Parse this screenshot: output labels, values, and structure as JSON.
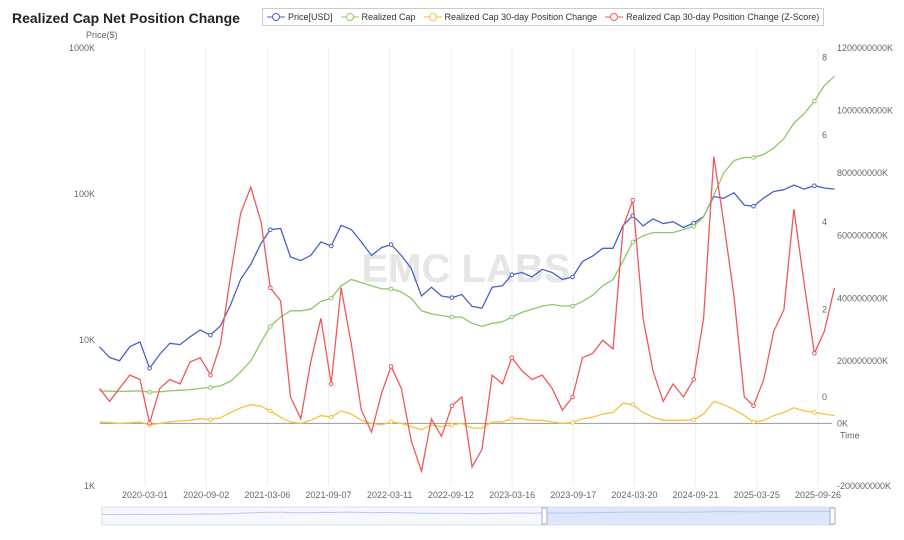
{
  "chart_data": {
    "type": "line",
    "title": "Realized Cap Net Position Change",
    "ylabel_left": "Price($)",
    "xlabel": "Time",
    "left_axis": {
      "scale": "log",
      "ticks": [
        "1K",
        "10K",
        "100K",
        "1000K"
      ],
      "range": [
        1000,
        1000000
      ]
    },
    "right_axis": {
      "ticks": [
        "-200000000K",
        "0K",
        "200000000K",
        "400000000K",
        "600000000K",
        "800000000K",
        "1000000000K",
        "1200000000K"
      ],
      "range": [
        -200000000,
        1200000000
      ]
    },
    "zscore_axis": {
      "ticks": [
        "0",
        "2",
        "4",
        "6",
        "8"
      ],
      "range": [
        -2,
        8
      ]
    },
    "x_ticks": [
      "2020-03-01",
      "2020-09-02",
      "2021-03-06",
      "2021-09-07",
      "2022-03-11",
      "2022-09-12",
      "2023-03-16",
      "2023-09-17",
      "2024-03-20",
      "2024-09-21",
      "2025-03-25",
      "2025-09-26"
    ],
    "x": [
      "2019-10",
      "2019-11",
      "2019-12",
      "2020-01",
      "2020-02",
      "2020-03",
      "2020-04",
      "2020-05",
      "2020-06",
      "2020-07",
      "2020-08",
      "2020-09",
      "2020-10",
      "2020-11",
      "2020-12",
      "2021-01",
      "2021-02",
      "2021-03",
      "2021-04",
      "2021-05",
      "2021-06",
      "2021-07",
      "2021-08",
      "2021-09",
      "2021-10",
      "2021-11",
      "2021-12",
      "2022-01",
      "2022-02",
      "2022-03",
      "2022-04",
      "2022-05",
      "2022-06",
      "2022-07",
      "2022-08",
      "2022-09",
      "2022-10",
      "2022-11",
      "2022-12",
      "2023-01",
      "2023-02",
      "2023-03",
      "2023-04",
      "2023-05",
      "2023-06",
      "2023-07",
      "2023-08",
      "2023-09",
      "2023-10",
      "2023-11",
      "2023-12",
      "2024-01",
      "2024-02",
      "2024-03",
      "2024-04",
      "2024-05",
      "2024-06",
      "2024-07",
      "2024-08",
      "2024-09",
      "2024-10",
      "2024-11",
      "2024-12",
      "2025-01",
      "2025-02",
      "2025-03",
      "2025-04",
      "2025-05",
      "2025-06",
      "2025-07",
      "2025-08",
      "2025-09",
      "2025-10",
      "2025-11"
    ],
    "series": [
      {
        "name": "Price[USD]",
        "color": "#4a62c8",
        "axis": "left",
        "values": [
          9000,
          7600,
          7200,
          9000,
          9700,
          6400,
          8000,
          9500,
          9300,
          10500,
          11700,
          10800,
          12500,
          17500,
          26000,
          33000,
          46000,
          57000,
          58000,
          37000,
          35000,
          38000,
          47000,
          44000,
          61000,
          57000,
          47000,
          38000,
          43000,
          45000,
          38000,
          31000,
          20000,
          23000,
          20000,
          19500,
          20500,
          17000,
          16500,
          23000,
          23500,
          28000,
          29000,
          27000,
          30500,
          29000,
          26000,
          27000,
          34500,
          37700,
          42500,
          42500,
          61000,
          71000,
          60500,
          67500,
          62700,
          64600,
          59000,
          63300,
          70000,
          96000,
          93500,
          102000,
          84000,
          82500,
          94000,
          104000,
          107000,
          115000,
          108000,
          114000,
          110000,
          108000
        ]
      },
      {
        "name": "Realized Cap",
        "color": "#8cc86a",
        "axis": "right",
        "values": [
          104000000,
          103000000,
          102000000,
          103000000,
          104000000,
          100000000,
          101000000,
          104000000,
          106000000,
          108000000,
          112000000,
          115000000,
          120000000,
          135000000,
          165000000,
          200000000,
          260000000,
          310000000,
          340000000,
          360000000,
          360000000,
          365000000,
          390000000,
          400000000,
          440000000,
          460000000,
          450000000,
          440000000,
          430000000,
          430000000,
          420000000,
          400000000,
          360000000,
          350000000,
          345000000,
          340000000,
          340000000,
          320000000,
          310000000,
          320000000,
          325000000,
          340000000,
          355000000,
          365000000,
          375000000,
          380000000,
          375000000,
          375000000,
          390000000,
          410000000,
          440000000,
          460000000,
          520000000,
          580000000,
          600000000,
          610000000,
          610000000,
          610000000,
          620000000,
          630000000,
          660000000,
          730000000,
          800000000,
          840000000,
          850000000,
          850000000,
          860000000,
          880000000,
          910000000,
          960000000,
          990000000,
          1030000000,
          1080000000,
          1110000000
        ]
      },
      {
        "name": "Realized Cap 30-day Position Change",
        "color": "#f5c242",
        "axis": "right",
        "values": [
          5000000,
          3000000,
          0,
          2000000,
          5000000,
          -5000000,
          0,
          5000000,
          8000000,
          10000000,
          15000000,
          12000000,
          18000000,
          35000000,
          50000000,
          60000000,
          55000000,
          40000000,
          20000000,
          5000000,
          0,
          10000000,
          25000000,
          20000000,
          40000000,
          30000000,
          10000000,
          0,
          -5000000,
          5000000,
          0,
          -10000000,
          -20000000,
          -5000000,
          -10000000,
          -5000000,
          0,
          -15000000,
          -15000000,
          5000000,
          5000000,
          15000000,
          15000000,
          10000000,
          10000000,
          5000000,
          0,
          3000000,
          15000000,
          20000000,
          30000000,
          35000000,
          65000000,
          60000000,
          35000000,
          20000000,
          10000000,
          10000000,
          10000000,
          12000000,
          30000000,
          70000000,
          60000000,
          45000000,
          25000000,
          5000000,
          10000000,
          25000000,
          35000000,
          50000000,
          40000000,
          35000000,
          30000000,
          25000000
        ]
      },
      {
        "name": "Realized Cap 30-day Position Change (Z-Score)",
        "color": "#ee5a5a",
        "axis": "zscore",
        "values": [
          0.2,
          -0.1,
          0.2,
          0.5,
          0.4,
          -0.6,
          0.2,
          0.4,
          0.3,
          0.8,
          0.9,
          0.5,
          1.2,
          2.8,
          4.2,
          4.8,
          4.0,
          2.5,
          2.2,
          0,
          -0.5,
          0.8,
          1.8,
          0.3,
          2.5,
          1.2,
          -0.3,
          -0.8,
          0.1,
          0.7,
          0.2,
          -1.0,
          -1.7,
          -0.5,
          -0.9,
          -0.2,
          0.0,
          -1.6,
          -1.2,
          0.5,
          0.3,
          0.9,
          0.6,
          0.4,
          0.5,
          0.2,
          -0.3,
          0.0,
          0.9,
          1.0,
          1.3,
          1.1,
          3.9,
          4.5,
          1.8,
          0.6,
          -0.1,
          0.3,
          0.0,
          0.4,
          1.8,
          5.5,
          4.0,
          2.3,
          0.0,
          -0.2,
          0.4,
          1.5,
          2.0,
          4.3,
          2.6,
          1.0,
          1.5,
          2.5
        ]
      }
    ],
    "grid": "vertical",
    "legend": "top",
    "watermark": "EMC LABS"
  }
}
